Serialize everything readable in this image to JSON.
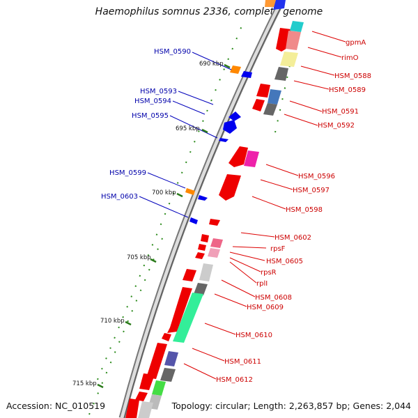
{
  "title": "Haemophilus somnus 2336, complete genome",
  "footer": {
    "accession": "Accession: NC_010519",
    "topology": "Topology: circular; Length: 2,263,857 bp; Genes: 2,044"
  },
  "ticks": [
    {
      "label": "690 kbp"
    },
    {
      "label": "695 kbp"
    },
    {
      "label": "700 kbp"
    },
    {
      "label": "705 kbp"
    },
    {
      "label": "710 kbp"
    },
    {
      "label": "715 kbp"
    }
  ],
  "forward_labels": [
    "gpmA",
    "rimO",
    "HSM_0588",
    "HSM_0589",
    "HSM_0591",
    "HSM_0592",
    "HSM_0596",
    "HSM_0597",
    "HSM_0598",
    "HSM_0602",
    "rpsF",
    "HSM_0605",
    "rpsR",
    "rplI",
    "HSM_0608",
    "HSM_0609",
    "HSM_0610",
    "HSM_0611",
    "HSM_0612"
  ],
  "reverse_labels": [
    "HSM_0590",
    "HSM_0593",
    "HSM_0594",
    "HSM_0595",
    "HSM_0599",
    "HSM_0603"
  ],
  "colors": {
    "forward_label": "#cc0000",
    "reverse_label": "#0000aa",
    "cds": "#ee0000",
    "reverse_cds": "#0000ee",
    "backbone": "#888888",
    "tick": "#2a7a1a"
  }
}
